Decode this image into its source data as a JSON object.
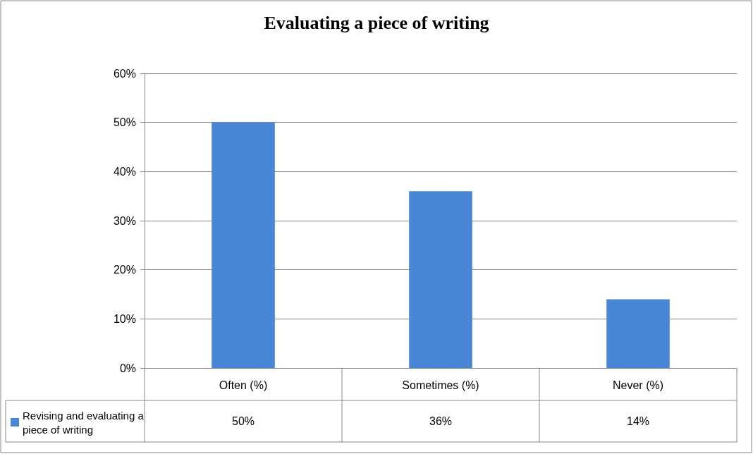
{
  "chart_data": {
    "type": "bar",
    "title": "Evaluating a piece of writing",
    "categories": [
      "Often (%)",
      "Sometimes (%)",
      "Never (%)"
    ],
    "series": [
      {
        "name": "Revising and evaluating a piece of writing",
        "color": "#4a86d6",
        "values": [
          50,
          36,
          14
        ],
        "value_labels": [
          "50%",
          "36%",
          "14%"
        ]
      }
    ],
    "ylim": [
      0,
      60
    ],
    "yticks": [
      {
        "value": 0,
        "label": "0%"
      },
      {
        "value": 10,
        "label": "10%"
      },
      {
        "value": 20,
        "label": "20%"
      },
      {
        "value": 30,
        "label": "30%"
      },
      {
        "value": 40,
        "label": "40%"
      },
      {
        "value": 50,
        "label": "50%"
      },
      {
        "value": 60,
        "label": "60%"
      }
    ],
    "grid": "y",
    "legend": "bottom left"
  }
}
